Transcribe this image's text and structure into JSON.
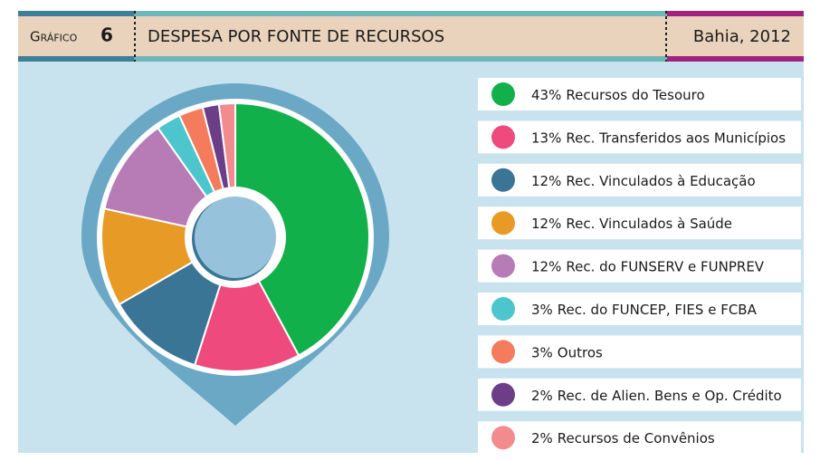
{
  "header": {
    "label": "Gráfico",
    "number": "6"
  },
  "chart_data": {
    "type": "pie",
    "title": "DESPESA POR FONTE DE RECURSOS",
    "subtitle": "Bahia, 2012",
    "categories": [
      "Recursos do Tesouro",
      "Rec. Transferidos aos Municípios",
      "Rec. Vinculados à Educação",
      "Rec. Vinculados à Saúde",
      "Rec. do FUNSERV e FUNPREV",
      "Rec. do FUNCEP, FIES e FCBA",
      "Outros",
      "Rec. de Alien. Bens e Op. Crédito",
      "Recursos de Convênios"
    ],
    "values": [
      43,
      13,
      12,
      12,
      12,
      3,
      3,
      2,
      2
    ],
    "value_labels": [
      "43%",
      "13%",
      "12%",
      "12%",
      "12%",
      "3%",
      "3%",
      "2%",
      "2%"
    ],
    "colors": [
      "#12b04b",
      "#ef4a7e",
      "#3a7596",
      "#e89a26",
      "#b77bb5",
      "#4cc6cc",
      "#f47b5b",
      "#6b3e87",
      "#f28b8e"
    ]
  }
}
